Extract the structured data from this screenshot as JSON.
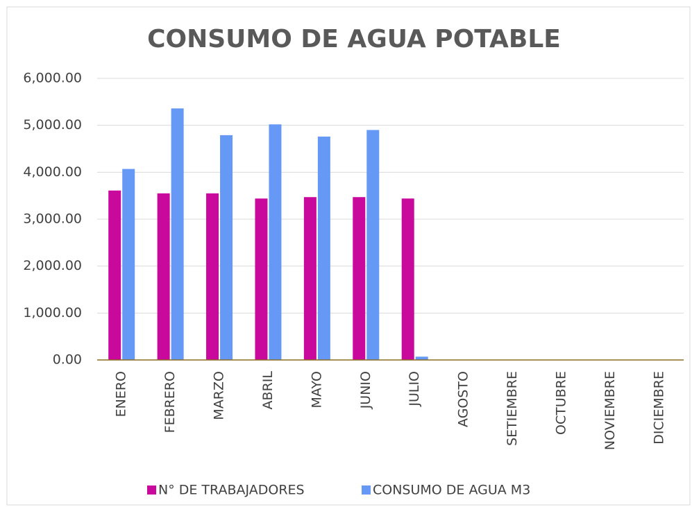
{
  "chart_data": {
    "type": "bar",
    "title": "CONSUMO DE AGUA POTABLE",
    "categories": [
      "ENERO",
      "FEBRERO",
      "MARZO",
      "ABRIL",
      "MAYO",
      "JUNIO",
      "JULIO",
      "AGOSTO",
      "SETIEMBRE",
      "OCTUBRE",
      "NOVIEMBRE",
      "DICIEMBRE"
    ],
    "series": [
      {
        "name": "N° DE TRABAJADORES",
        "color": "#c9089c",
        "values": [
          3610,
          3550,
          3550,
          3440,
          3470,
          3470,
          3440,
          null,
          null,
          null,
          null,
          null
        ]
      },
      {
        "name": "CONSUMO DE AGUA M3",
        "color": "#6699f5",
        "values": [
          4070,
          5360,
          4790,
          5020,
          4760,
          4900,
          70,
          null,
          null,
          null,
          null,
          null
        ]
      }
    ],
    "ylim": [
      0,
      6000
    ],
    "yticks": [
      {
        "value": 0,
        "label": "0.00"
      },
      {
        "value": 1000,
        "label": "1,000.00"
      },
      {
        "value": 2000,
        "label": "2,000.00"
      },
      {
        "value": 3000,
        "label": "3,000.00"
      },
      {
        "value": 4000,
        "label": "4,000.00"
      },
      {
        "value": 5000,
        "label": "5,000.00"
      },
      {
        "value": 6000,
        "label": "6,000.00"
      }
    ],
    "grid": true,
    "legend": "bottom"
  }
}
